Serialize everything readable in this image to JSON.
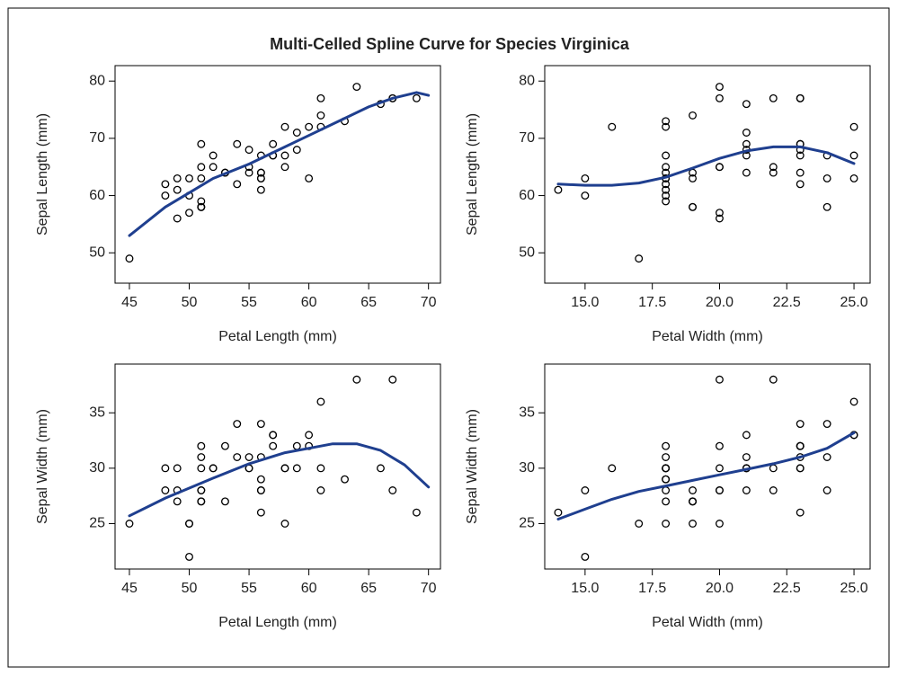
{
  "title": "Multi-Celled Spline Curve for Species Virginica",
  "chart_data": [
    {
      "type": "scatter",
      "xlabel": "Petal Length (mm)",
      "ylabel": "Sepal Length (mm)",
      "xlim": [
        43.8,
        71
      ],
      "ylim": [
        44.7,
        82.7
      ],
      "xticks": [
        45,
        50,
        55,
        60,
        65,
        70
      ],
      "yticks": [
        50,
        60,
        70,
        80
      ],
      "series": [
        {
          "type": "scatter",
          "color": "#000000",
          "x": [
            60,
            51,
            59,
            56,
            58,
            66,
            45,
            63,
            58,
            61,
            51,
            53,
            55,
            50,
            51,
            53,
            55,
            67,
            69,
            50,
            57,
            49,
            67,
            49,
            57,
            60,
            48,
            49,
            56,
            58,
            61,
            64,
            56,
            51,
            56,
            61,
            56,
            55,
            48,
            54,
            56,
            51,
            51,
            59,
            57,
            52,
            50,
            52,
            54,
            51
          ],
          "values": [
            63,
            58,
            71,
            63,
            65,
            76,
            49,
            73,
            67,
            72,
            65,
            64,
            68,
            57,
            58,
            64,
            65,
            77,
            77,
            60,
            69,
            56,
            77,
            63,
            67,
            72,
            62,
            61,
            64,
            72,
            74,
            79,
            64,
            63,
            61,
            77,
            63,
            64,
            60,
            69,
            67,
            69,
            58,
            68,
            67,
            67,
            63,
            65,
            62,
            59
          ]
        },
        {
          "type": "line",
          "color": "#1f3f8f",
          "x": [
            45,
            48,
            50,
            52,
            55,
            58,
            60,
            63,
            65,
            67,
            69,
            70
          ],
          "values": [
            53,
            58,
            60.5,
            63,
            65.5,
            68.5,
            70.5,
            73.5,
            75.5,
            77,
            78,
            77.5
          ]
        }
      ]
    },
    {
      "type": "scatter",
      "xlabel": "Petal Width (mm)",
      "ylabel": "Sepal Length (mm)",
      "xlim": [
        13.5,
        25.6
      ],
      "ylim": [
        44.7,
        82.7
      ],
      "xticks": [
        {
          "value": 15,
          "label": "15.0"
        },
        17.5,
        {
          "value": 20,
          "label": "20.0"
        },
        22.5,
        {
          "value": 25,
          "label": "25.0"
        }
      ],
      "yticks": [
        50,
        60,
        70,
        80
      ],
      "series": [
        {
          "type": "scatter",
          "color": "#000000",
          "x": [
            25,
            19,
            21,
            18,
            22,
            21,
            17,
            18,
            18,
            25,
            20,
            19,
            21,
            20,
            24,
            23,
            18,
            22,
            23,
            15,
            23,
            20,
            20,
            18,
            21,
            18,
            18,
            18,
            21,
            16,
            19,
            20,
            22,
            15,
            14,
            23,
            24,
            18,
            18,
            21,
            24,
            23,
            19,
            23,
            25,
            23,
            19,
            20,
            23,
            18
          ],
          "values": [
            63,
            58,
            71,
            63,
            65,
            76,
            49,
            73,
            67,
            72,
            65,
            64,
            68,
            57,
            58,
            64,
            65,
            77,
            77,
            60,
            69,
            56,
            77,
            63,
            67,
            72,
            62,
            61,
            64,
            72,
            74,
            79,
            64,
            63,
            61,
            77,
            63,
            64,
            60,
            69,
            67,
            69,
            58,
            68,
            67,
            67,
            63,
            65,
            62,
            59
          ]
        },
        {
          "type": "line",
          "color": "#1f3f8f",
          "x": [
            14,
            15,
            16,
            17,
            18,
            19,
            20,
            21,
            22,
            23,
            24,
            25
          ],
          "values": [
            62,
            61.8,
            61.8,
            62.2,
            63.2,
            64.8,
            66.5,
            67.8,
            68.5,
            68.5,
            67.5,
            65.6
          ]
        }
      ]
    },
    {
      "type": "scatter",
      "xlabel": "Petal Length (mm)",
      "ylabel": "Sepal Width (mm)",
      "xlim": [
        43.8,
        71
      ],
      "ylim": [
        20.9,
        39.4
      ],
      "xticks": [
        45,
        50,
        55,
        60,
        65,
        70
      ],
      "yticks": [
        25,
        30,
        35
      ],
      "series": [
        {
          "type": "scatter",
          "color": "#000000",
          "x": [
            60,
            51,
            59,
            56,
            58,
            66,
            45,
            63,
            58,
            61,
            51,
            53,
            55,
            50,
            51,
            53,
            55,
            67,
            69,
            50,
            57,
            49,
            67,
            49,
            57,
            60,
            48,
            49,
            56,
            58,
            61,
            64,
            56,
            51,
            56,
            61,
            56,
            55,
            48,
            54,
            56,
            51,
            51,
            59,
            57,
            52,
            50,
            52,
            54,
            51
          ],
          "values": [
            33,
            27,
            30,
            29,
            30,
            30,
            25,
            29,
            25,
            36,
            32,
            27,
            30,
            25,
            28,
            32,
            30,
            38,
            26,
            22,
            32,
            28,
            28,
            27,
            33,
            32,
            28,
            30,
            28,
            30,
            28,
            38,
            28,
            28,
            26,
            30,
            34,
            31,
            30,
            31,
            31,
            31,
            27,
            32,
            33,
            30,
            25,
            30,
            34,
            30
          ]
        },
        {
          "type": "line",
          "color": "#1f3f8f",
          "x": [
            45,
            48,
            50,
            52,
            55,
            58,
            60,
            62,
            64,
            66,
            68,
            70
          ],
          "values": [
            25.7,
            27.3,
            28.2,
            29.1,
            30.4,
            31.4,
            31.8,
            32.2,
            32.2,
            31.6,
            30.3,
            28.3
          ]
        }
      ]
    },
    {
      "type": "scatter",
      "xlabel": "Petal Width (mm)",
      "ylabel": "Sepal Width (mm)",
      "xlim": [
        13.5,
        25.6
      ],
      "ylim": [
        20.9,
        39.4
      ],
      "xticks": [
        {
          "value": 15,
          "label": "15.0"
        },
        17.5,
        {
          "value": 20,
          "label": "20.0"
        },
        22.5,
        {
          "value": 25,
          "label": "25.0"
        }
      ],
      "yticks": [
        25,
        30,
        35
      ],
      "series": [
        {
          "type": "scatter",
          "color": "#000000",
          "x": [
            25,
            19,
            21,
            18,
            22,
            21,
            17,
            18,
            18,
            25,
            20,
            19,
            21,
            20,
            24,
            23,
            18,
            22,
            23,
            15,
            23,
            20,
            20,
            18,
            21,
            18,
            18,
            18,
            21,
            16,
            19,
            20,
            22,
            15,
            14,
            23,
            24,
            18,
            18,
            21,
            24,
            23,
            19,
            23,
            25,
            23,
            19,
            20,
            23,
            18
          ],
          "values": [
            33,
            27,
            30,
            29,
            30,
            30,
            25,
            29,
            25,
            36,
            32,
            27,
            30,
            25,
            28,
            32,
            30,
            38,
            26,
            22,
            32,
            28,
            28,
            27,
            33,
            32,
            28,
            30,
            28,
            30,
            28,
            38,
            28,
            28,
            26,
            30,
            34,
            31,
            30,
            31,
            31,
            31,
            27,
            32,
            33,
            30,
            25,
            30,
            34,
            30
          ]
        },
        {
          "type": "line",
          "color": "#1f3f8f",
          "x": [
            14,
            15,
            16,
            17,
            18,
            19,
            20,
            21,
            22,
            23,
            24,
            25
          ],
          "values": [
            25.4,
            26.3,
            27.2,
            27.9,
            28.4,
            28.9,
            29.4,
            29.9,
            30.4,
            31,
            31.8,
            33.2
          ]
        }
      ]
    }
  ]
}
